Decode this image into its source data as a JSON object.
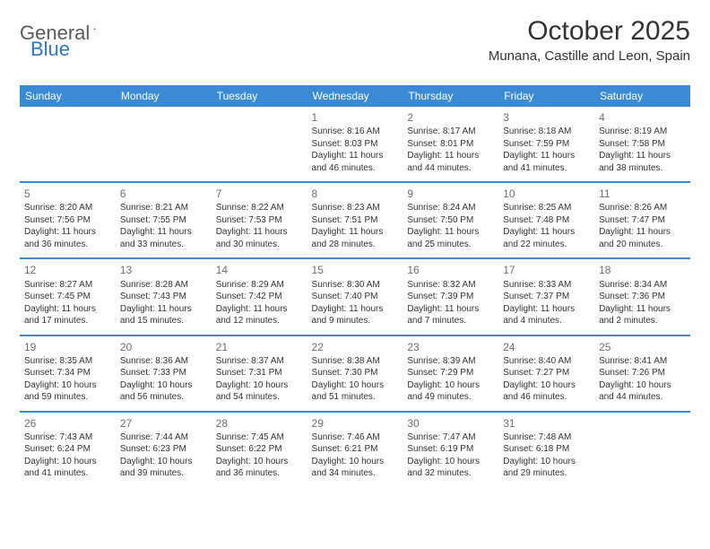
{
  "brand": {
    "word1": "General",
    "word2": "Blue",
    "word1_color": "#5a5a5a",
    "word2_color": "#2b78c2",
    "sail_color": "#2b78c2"
  },
  "header": {
    "title": "October 2025",
    "location": "Munana, Castille and Leon, Spain"
  },
  "theme": {
    "header_bg": "#3b8bd4",
    "header_fg": "#ffffff",
    "row_border": "#3b8bd4",
    "body_bg": "#ffffff",
    "text_color": "#333333",
    "daynum_color": "#6e6e6e",
    "title_fontsize": 30,
    "location_fontsize": 15,
    "weekday_fontsize": 12,
    "daynum_fontsize": 12,
    "cell_fontsize": 10
  },
  "calendar": {
    "columns": [
      "Sunday",
      "Monday",
      "Tuesday",
      "Wednesday",
      "Thursday",
      "Friday",
      "Saturday"
    ],
    "weeks": [
      [
        null,
        null,
        null,
        {
          "n": "1",
          "sr": "8:16 AM",
          "ss": "8:03 PM",
          "dl": "11 hours and 46 minutes."
        },
        {
          "n": "2",
          "sr": "8:17 AM",
          "ss": "8:01 PM",
          "dl": "11 hours and 44 minutes."
        },
        {
          "n": "3",
          "sr": "8:18 AM",
          "ss": "7:59 PM",
          "dl": "11 hours and 41 minutes."
        },
        {
          "n": "4",
          "sr": "8:19 AM",
          "ss": "7:58 PM",
          "dl": "11 hours and 38 minutes."
        }
      ],
      [
        {
          "n": "5",
          "sr": "8:20 AM",
          "ss": "7:56 PM",
          "dl": "11 hours and 36 minutes."
        },
        {
          "n": "6",
          "sr": "8:21 AM",
          "ss": "7:55 PM",
          "dl": "11 hours and 33 minutes."
        },
        {
          "n": "7",
          "sr": "8:22 AM",
          "ss": "7:53 PM",
          "dl": "11 hours and 30 minutes."
        },
        {
          "n": "8",
          "sr": "8:23 AM",
          "ss": "7:51 PM",
          "dl": "11 hours and 28 minutes."
        },
        {
          "n": "9",
          "sr": "8:24 AM",
          "ss": "7:50 PM",
          "dl": "11 hours and 25 minutes."
        },
        {
          "n": "10",
          "sr": "8:25 AM",
          "ss": "7:48 PM",
          "dl": "11 hours and 22 minutes."
        },
        {
          "n": "11",
          "sr": "8:26 AM",
          "ss": "7:47 PM",
          "dl": "11 hours and 20 minutes."
        }
      ],
      [
        {
          "n": "12",
          "sr": "8:27 AM",
          "ss": "7:45 PM",
          "dl": "11 hours and 17 minutes."
        },
        {
          "n": "13",
          "sr": "8:28 AM",
          "ss": "7:43 PM",
          "dl": "11 hours and 15 minutes."
        },
        {
          "n": "14",
          "sr": "8:29 AM",
          "ss": "7:42 PM",
          "dl": "11 hours and 12 minutes."
        },
        {
          "n": "15",
          "sr": "8:30 AM",
          "ss": "7:40 PM",
          "dl": "11 hours and 9 minutes."
        },
        {
          "n": "16",
          "sr": "8:32 AM",
          "ss": "7:39 PM",
          "dl": "11 hours and 7 minutes."
        },
        {
          "n": "17",
          "sr": "8:33 AM",
          "ss": "7:37 PM",
          "dl": "11 hours and 4 minutes."
        },
        {
          "n": "18",
          "sr": "8:34 AM",
          "ss": "7:36 PM",
          "dl": "11 hours and 2 minutes."
        }
      ],
      [
        {
          "n": "19",
          "sr": "8:35 AM",
          "ss": "7:34 PM",
          "dl": "10 hours and 59 minutes."
        },
        {
          "n": "20",
          "sr": "8:36 AM",
          "ss": "7:33 PM",
          "dl": "10 hours and 56 minutes."
        },
        {
          "n": "21",
          "sr": "8:37 AM",
          "ss": "7:31 PM",
          "dl": "10 hours and 54 minutes."
        },
        {
          "n": "22",
          "sr": "8:38 AM",
          "ss": "7:30 PM",
          "dl": "10 hours and 51 minutes."
        },
        {
          "n": "23",
          "sr": "8:39 AM",
          "ss": "7:29 PM",
          "dl": "10 hours and 49 minutes."
        },
        {
          "n": "24",
          "sr": "8:40 AM",
          "ss": "7:27 PM",
          "dl": "10 hours and 46 minutes."
        },
        {
          "n": "25",
          "sr": "8:41 AM",
          "ss": "7:26 PM",
          "dl": "10 hours and 44 minutes."
        }
      ],
      [
        {
          "n": "26",
          "sr": "7:43 AM",
          "ss": "6:24 PM",
          "dl": "10 hours and 41 minutes."
        },
        {
          "n": "27",
          "sr": "7:44 AM",
          "ss": "6:23 PM",
          "dl": "10 hours and 39 minutes."
        },
        {
          "n": "28",
          "sr": "7:45 AM",
          "ss": "6:22 PM",
          "dl": "10 hours and 36 minutes."
        },
        {
          "n": "29",
          "sr": "7:46 AM",
          "ss": "6:21 PM",
          "dl": "10 hours and 34 minutes."
        },
        {
          "n": "30",
          "sr": "7:47 AM",
          "ss": "6:19 PM",
          "dl": "10 hours and 32 minutes."
        },
        {
          "n": "31",
          "sr": "7:48 AM",
          "ss": "6:18 PM",
          "dl": "10 hours and 29 minutes."
        },
        null
      ]
    ],
    "labels": {
      "sunrise": "Sunrise:",
      "sunset": "Sunset:",
      "daylight": "Daylight:"
    }
  }
}
